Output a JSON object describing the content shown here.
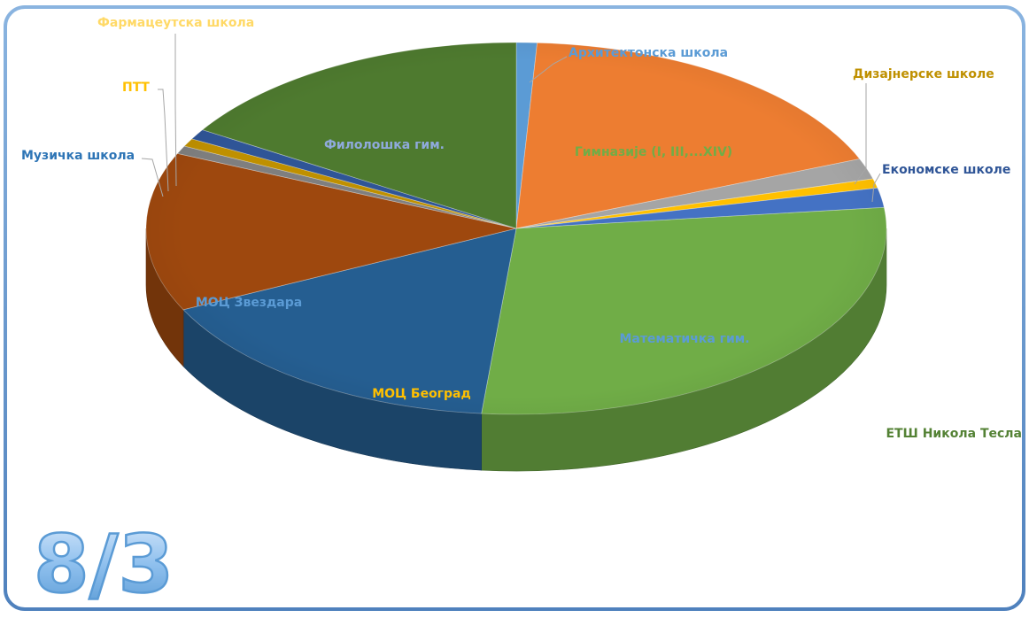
{
  "slide_number": "8/3",
  "chart_data": {
    "type": "pie",
    "title": "",
    "three_d": true,
    "start_angle_deg": 0,
    "direction": "clockwise",
    "slices": [
      {
        "label": "Архитектонска школа",
        "value": 0.9,
        "color": "#5b9bd5",
        "label_color": "#5b9bd5"
      },
      {
        "label": "Гимназије (I, III,...XIV)",
        "value": 18.0,
        "color": "#ed7d31",
        "label_color": "#70ad47"
      },
      {
        "label": "Дизајнерске школе",
        "value": 1.8,
        "color": "#a5a5a5",
        "label_color": "#bf9000"
      },
      {
        "label": "",
        "value": 0.8,
        "color": "#ffc000",
        "label_color": "#ffc000"
      },
      {
        "label": "Економске школе",
        "value": 1.7,
        "color": "#4472c4",
        "label_color": "#2f5597"
      },
      {
        "label": "Математичка гим.",
        "value": 28.3,
        "color": "#70ad47",
        "label_color": "#5b9bd5"
      },
      {
        "label": "МОЦ Београд",
        "value": 16.3,
        "color": "#255e91",
        "label_color": "#ffc000"
      },
      {
        "label": "МОЦ Звездара",
        "value": 13.8,
        "color": "#9e480e",
        "label_color": "#5b9bd5"
      },
      {
        "label": "Музичка школа",
        "value": 0.7,
        "color": "#7f7f7f",
        "label_color": "#2e75b6"
      },
      {
        "label": "ПТТ",
        "value": 0.7,
        "color": "#bf9000",
        "label_color": "#ffc000"
      },
      {
        "label": "Фармацеутска школа",
        "value": 0.9,
        "color": "#2f5597",
        "label_color": "#ffd966"
      },
      {
        "label": "Филолошка гим.",
        "value": 16.1,
        "color": "#4e7a2f",
        "label_color": "#8faadc"
      }
    ],
    "extra_labels": [
      {
        "label": "ЕТШ Никола Тесла",
        "color": "#548235"
      }
    ]
  }
}
